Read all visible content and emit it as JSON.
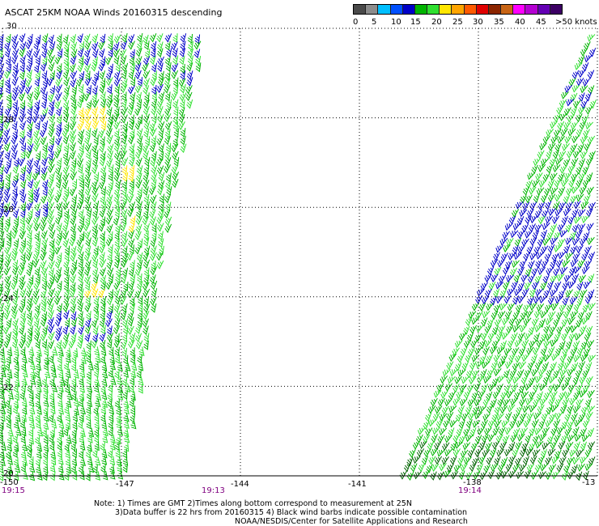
{
  "title": "ASCAT 25KM NOAA Winds 20160315 descending",
  "legend": {
    "colors": [
      "#4a4a4a",
      "#8c8c8c",
      "#00bfff",
      "#0050ff",
      "#0000c8",
      "#00b400",
      "#30e030",
      "#ffe600",
      "#ffa500",
      "#ff5a00",
      "#e00000",
      "#8b2500",
      "#c86414",
      "#ff00ff",
      "#b400d2",
      "#6400b4",
      "#3c0064"
    ],
    "labels": [
      "0",
      "5",
      "10",
      "15",
      "20",
      "25",
      "30",
      "35",
      "40",
      "45",
      ">50 knots"
    ]
  },
  "axes": {
    "lon_labels": [
      "-150",
      "-147",
      "-144",
      "-141",
      "-138",
      "-13"
    ],
    "lat_labels": [
      "30",
      "28",
      "26",
      "24",
      "22",
      "20"
    ]
  },
  "pass_times": [
    "19:15",
    "19:13",
    "19:14"
  ],
  "notes": {
    "line1": "Note: 1) Times are GMT 2)Times along bottom correspond to measurement at 25N",
    "line2": "3)Data buffer is 22 hrs from 20160315 4) Black wind barbs indicate possible contamination",
    "line3": "NOAA/NESDIS/Center for Satellite Applications and Research"
  },
  "colors": {
    "blue_barb": "#0000c8",
    "green_barb": "#00b400",
    "lightgreen_barb": "#30e030",
    "yellow_barb": "#ffe600",
    "time_text": "#800080"
  }
}
